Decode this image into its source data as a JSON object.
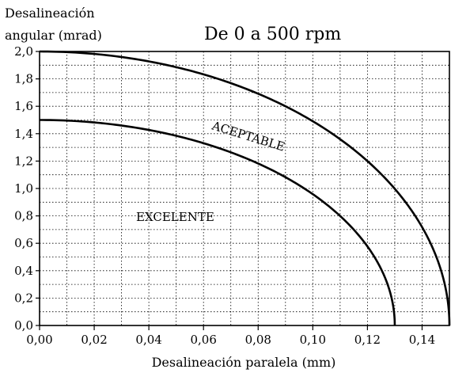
{
  "chart_data": {
    "type": "line",
    "title": "De 0 a 500 rpm",
    "xlabel": "Desalineación paralela (mm)",
    "ylabel_line1": "Desalineación",
    "ylabel_line2": "angular (mrad)",
    "xlim": [
      0,
      0.15
    ],
    "ylim": [
      0,
      2.0
    ],
    "x_ticks": [
      "0,00",
      "0,02",
      "0,04",
      "0,06",
      "0,08",
      "0,10",
      "0,12",
      "0,14"
    ],
    "y_ticks": [
      "0,0",
      "0,2",
      "0,4",
      "0,6",
      "0,8",
      "1,0",
      "1,2",
      "1,4",
      "1,6",
      "1,8",
      "2,0"
    ],
    "grid": true,
    "series": [
      {
        "points": [
          [
            0.0,
            1.5
          ],
          [
            0.02,
            1.48
          ],
          [
            0.04,
            1.42
          ],
          [
            0.06,
            1.31
          ],
          [
            0.08,
            1.14
          ],
          [
            0.1,
            0.87
          ],
          [
            0.12,
            0.46
          ],
          [
            0.125,
            0.27
          ],
          [
            0.13,
            0.0
          ]
        ]
      },
      {
        "points": [
          [
            0.0,
            2.0
          ],
          [
            0.02,
            1.98
          ],
          [
            0.04,
            1.93
          ],
          [
            0.06,
            1.83
          ],
          [
            0.08,
            1.68
          ],
          [
            0.1,
            1.44
          ],
          [
            0.12,
            1.04
          ],
          [
            0.14,
            0.53
          ],
          [
            0.145,
            0.3
          ],
          [
            0.15,
            0.0
          ]
        ]
      }
    ],
    "annotations": [
      "EXCELENTE",
      "ACEPTABLE"
    ]
  }
}
